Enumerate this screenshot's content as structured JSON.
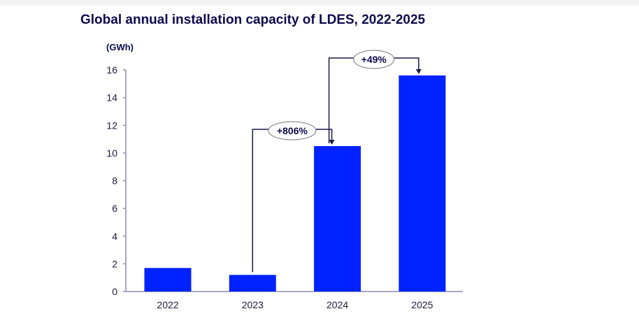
{
  "chart_data": {
    "type": "bar",
    "title": "Global annual installation capacity of LDES, 2022-2025",
    "ylabel": "(GWh)",
    "xlabel": "",
    "categories": [
      "2022",
      "2023",
      "2024",
      "2025"
    ],
    "values": [
      1.7,
      1.2,
      10.5,
      15.6
    ],
    "ylim": [
      0,
      16
    ],
    "yticks": [
      0,
      2,
      4,
      6,
      8,
      10,
      12,
      14,
      16
    ],
    "grid": false,
    "annotations": [
      {
        "label": "+806%",
        "from": "2023",
        "to": "2024"
      },
      {
        "label": "+49%",
        "from": "2024",
        "to": "2025"
      }
    ],
    "colors": {
      "bar": "#0022ff",
      "title": "#0b0b4f",
      "axis": "#8c8cb0",
      "text": "#1a1a3a"
    }
  }
}
